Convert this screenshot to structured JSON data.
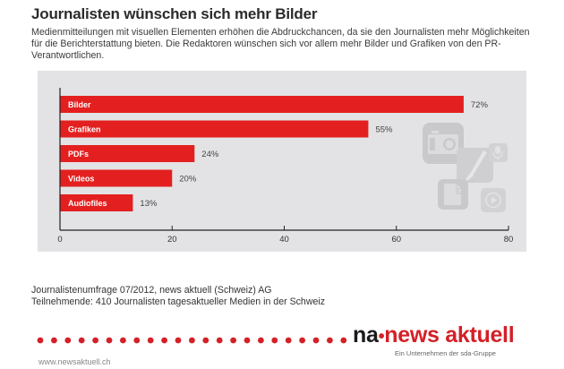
{
  "header": {
    "title": "Journalisten wünschen sich mehr Bilder",
    "intro": "Medienmitteilungen mit visuellen Elementen erhöhen die Abdruckchancen, da sie den Journalisten mehr Möglichkeiten für die Berichterstattung bieten. Die Redaktoren wünschen sich vor allem mehr Bilder und Grafiken von den PR-Verantwortlichen."
  },
  "chart_data": {
    "type": "bar",
    "orientation": "horizontal",
    "title": "Journalisten wünschen sich mehr Bilder",
    "xlabel": "",
    "ylabel": "",
    "categories": [
      "Bilder",
      "Grafiken",
      "PDFs",
      "Videos",
      "Audiofiles"
    ],
    "values": [
      72,
      55,
      24,
      20,
      13
    ],
    "value_labels": [
      "72%",
      "55%",
      "24%",
      "20%",
      "13%"
    ],
    "xlim": [
      0,
      80
    ],
    "xticks": [
      0,
      20,
      40,
      60,
      80
    ],
    "grid": false,
    "legend": "none",
    "bar_color": "#e3201f",
    "category_labels_inside_bars": true
  },
  "decoration": {
    "icons": [
      "camera-icon",
      "paintbrush-icon",
      "microphone-icon",
      "pdf-document-icon",
      "play-icon"
    ]
  },
  "source": {
    "line1": "Journalistenumfrage 07/2012, news aktuell (Schweiz) AG",
    "line2": "Teilnehmende: 410 Journalisten tagesaktueller Medien in der Schweiz"
  },
  "footer": {
    "logo_prefix": "na",
    "logo_dot": "•",
    "logo_brand": "news aktuell",
    "tagline": "Ein Unternehmen der sda-Gruppe",
    "url": "www.newsaktuell.ch",
    "brand_color": "#d42027"
  }
}
